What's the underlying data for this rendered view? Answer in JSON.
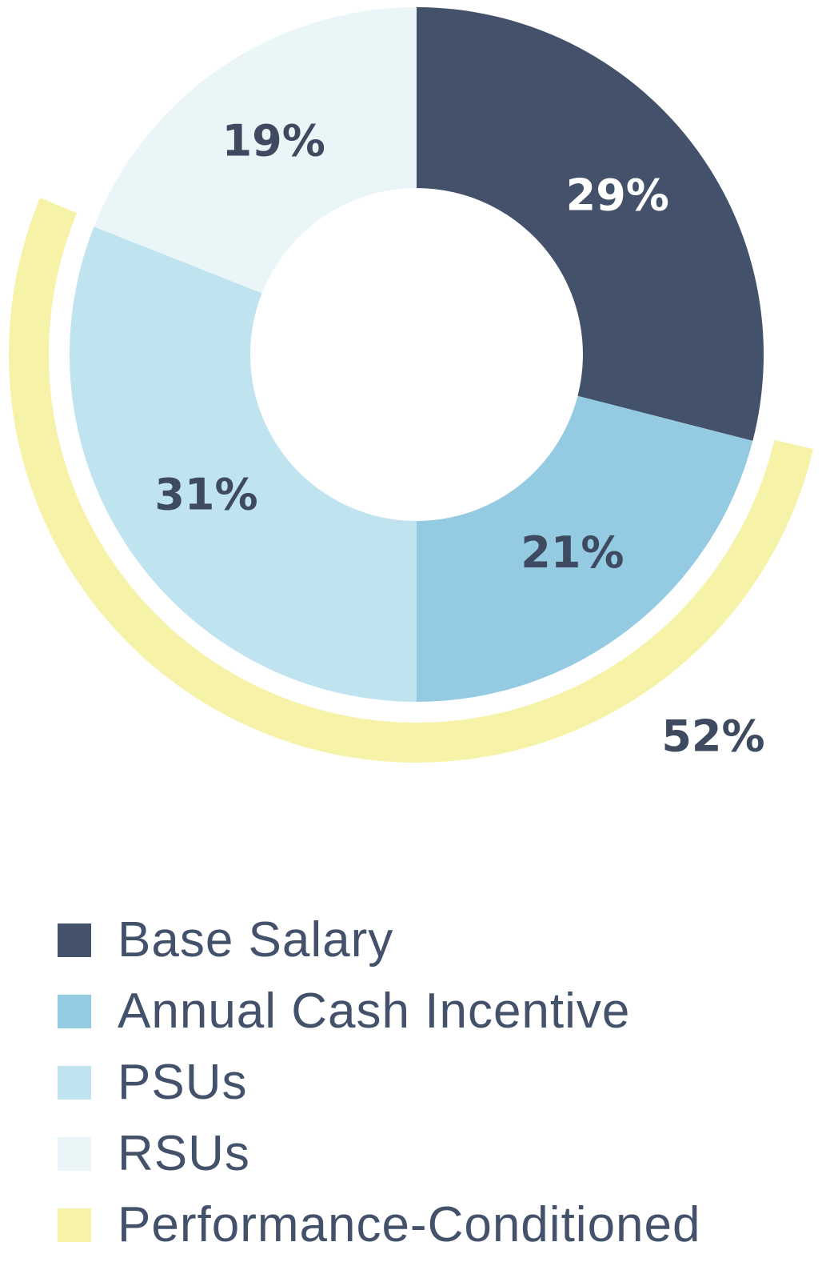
{
  "chart_data": {
    "type": "pie",
    "subtype": "donut-with-outer-arc",
    "start_angle_deg": 0,
    "direction": "clockwise",
    "slices": [
      {
        "label": "Base Salary",
        "value": 29,
        "display": "29%",
        "color": "#43526a",
        "text_color": "#ffffff"
      },
      {
        "label": "Annual Cash Incentive",
        "value": 21,
        "display": "21%",
        "color": "#94cbe2",
        "text_color": "#3e4a5f"
      },
      {
        "label": "PSUs",
        "value": 31,
        "display": "31%",
        "color": "#c0e3f0",
        "text_color": "#3e4a5f"
      },
      {
        "label": "RSUs",
        "value": 19,
        "display": "19%",
        "color": "#e9f5f7",
        "text_color": "#3e4a5f"
      }
    ],
    "outer_arc": {
      "label": "Performance-Conditioned",
      "value": 52,
      "display": "52%",
      "color": "#f6f3a9",
      "text_color": "#3e4a5f",
      "covers": [
        "Annual Cash Incentive",
        "PSUs"
      ]
    },
    "legend": {
      "placement": "bottom-left",
      "items": [
        {
          "label": "Base Salary",
          "color": "#43526a"
        },
        {
          "label": "Annual Cash Incentive",
          "color": "#94cbe2"
        },
        {
          "label": "PSUs",
          "color": "#c0e3f0"
        },
        {
          "label": "RSUs",
          "color": "#e9f5f7"
        },
        {
          "label": "Performance-Conditioned",
          "color": "#f6f3a9"
        }
      ]
    }
  }
}
